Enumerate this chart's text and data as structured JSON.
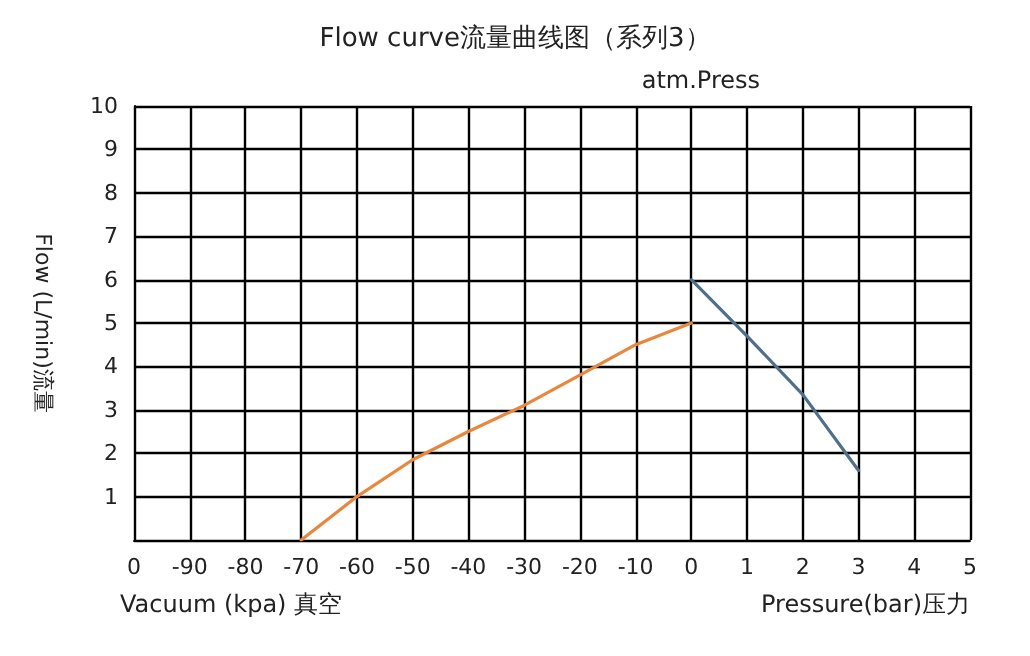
{
  "chart_data": {
    "type": "line",
    "title": "Flow curve流量曲线图（系列3）",
    "xlabel": "Vacuum (kpa) 真空",
    "ylabel": "Flow (L/min)流量",
    "annotations": [
      "atm.Press",
      "Pressure(bar)压力"
    ],
    "categories": [
      "0",
      "-90",
      "-80",
      "-70",
      "-60",
      "-50",
      "-40",
      "-30",
      "-20",
      "-10",
      "0",
      "1",
      "2",
      "3",
      "4",
      "5"
    ],
    "ylim": [
      0,
      10
    ],
    "yticks": [
      {
        "value": 0,
        "label": null
      },
      1,
      2,
      3,
      4,
      5,
      6,
      7,
      8,
      9,
      10
    ],
    "grid": true,
    "marker": "none",
    "line_style": "solid",
    "series": [
      {
        "color": "#e8873e",
        "values": [
          null,
          null,
          null,
          0,
          1.0,
          1.85,
          2.5,
          3.1,
          3.8,
          4.5,
          5.0,
          null,
          null,
          null,
          null,
          null
        ]
      },
      {
        "color": "#4f6f8a",
        "values": [
          null,
          null,
          null,
          null,
          null,
          null,
          null,
          null,
          null,
          null,
          6.0,
          4.7,
          3.35,
          1.6,
          null,
          null
        ]
      }
    ]
  }
}
